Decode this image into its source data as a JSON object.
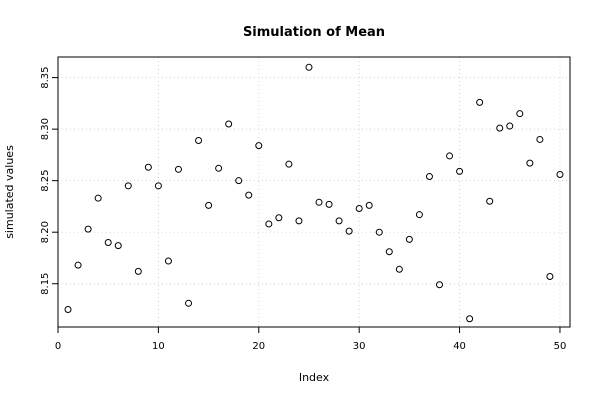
{
  "chart_data": {
    "type": "scatter",
    "title": "Simulation of Mean",
    "xlabel": "Index",
    "ylabel": "simulated values",
    "xlim": [
      0,
      51
    ],
    "ylim": [
      8.108,
      8.37
    ],
    "grid": true,
    "marker": "open-circle",
    "xticks": [
      0,
      10,
      20,
      30,
      40,
      50
    ],
    "xtick_labels": [
      "0",
      "10",
      "20",
      "30",
      "40",
      "50"
    ],
    "yticks": [
      8.15,
      8.2,
      8.25,
      8.3,
      8.35
    ],
    "ytick_labels": [
      "8.15",
      "8.20",
      "8.25",
      "8.30",
      "8.35"
    ],
    "x": [
      1,
      2,
      3,
      4,
      5,
      6,
      7,
      8,
      9,
      10,
      11,
      12,
      13,
      14,
      15,
      16,
      17,
      18,
      19,
      20,
      21,
      22,
      23,
      24,
      25,
      26,
      27,
      28,
      29,
      30,
      31,
      32,
      33,
      34,
      35,
      36,
      37,
      38,
      39,
      40,
      41,
      42,
      43,
      44,
      45,
      46,
      47,
      48,
      49,
      50
    ],
    "y": [
      8.125,
      8.168,
      8.203,
      8.233,
      8.19,
      8.187,
      8.245,
      8.162,
      8.263,
      8.245,
      8.172,
      8.261,
      8.131,
      8.289,
      8.226,
      8.262,
      8.305,
      8.25,
      8.236,
      8.284,
      8.208,
      8.214,
      8.266,
      8.211,
      8.36,
      8.229,
      8.227,
      8.211,
      8.201,
      8.223,
      8.226,
      8.2,
      8.181,
      8.164,
      8.193,
      8.217,
      8.254,
      8.149,
      8.274,
      8.259,
      8.116,
      8.326,
      8.23,
      8.301,
      8.303,
      8.315,
      8.267,
      8.29,
      8.157,
      8.256
    ]
  }
}
